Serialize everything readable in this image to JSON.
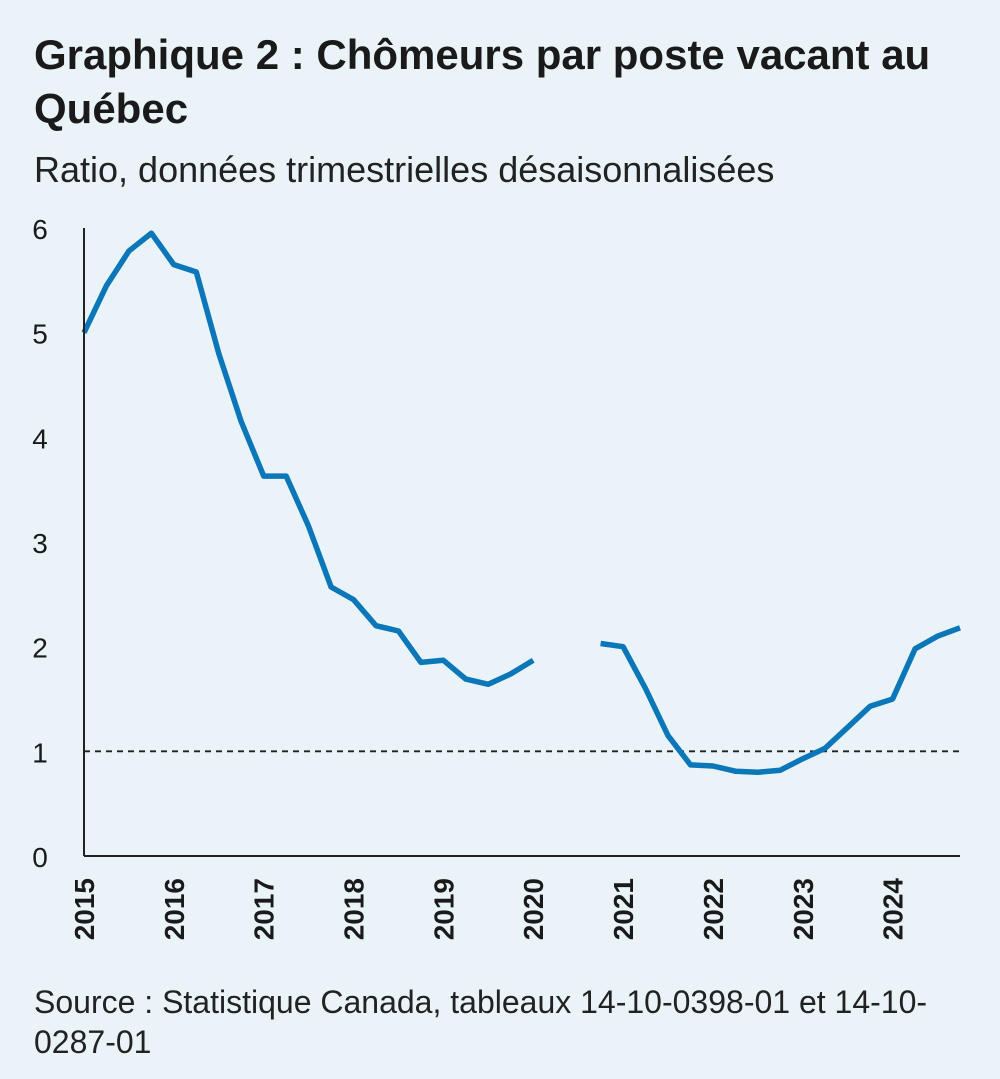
{
  "chart_data": {
    "type": "line",
    "title": "Graphique 2 : Chômeurs par poste vacant au Québec",
    "subtitle": "Ratio, données trimestrielles désaisonnalisées",
    "xlabel": "",
    "ylabel": "",
    "y_ticks": [
      "0",
      "1",
      "2",
      "3",
      "4",
      "5",
      "6"
    ],
    "x_ticks": [
      "2015",
      "2016",
      "2017",
      "2018",
      "2019",
      "2020",
      "2021",
      "2022",
      "2023",
      "2024"
    ],
    "xlim": [
      "2015-Q1",
      "2024-Q4"
    ],
    "ylim": [
      0,
      6
    ],
    "reference_line": {
      "value": 1,
      "style": "dashed"
    },
    "grid": false,
    "legend": "none",
    "series_color": "#0b76b8",
    "series": [
      {
        "values": [
          {
            "x": "2015-Q1",
            "y": 5.0
          },
          {
            "x": "2015-Q2",
            "y": 5.45
          },
          {
            "x": "2015-Q3",
            "y": 5.78
          },
          {
            "x": "2015-Q4",
            "y": 5.95
          },
          {
            "x": "2016-Q1",
            "y": 5.65
          },
          {
            "x": "2016-Q2",
            "y": 5.58
          },
          {
            "x": "2016-Q3",
            "y": 4.8
          },
          {
            "x": "2016-Q4",
            "y": 4.15
          },
          {
            "x": "2017-Q1",
            "y": 3.63
          },
          {
            "x": "2017-Q2",
            "y": 3.63
          },
          {
            "x": "2017-Q3",
            "y": 3.15
          },
          {
            "x": "2017-Q4",
            "y": 2.57
          },
          {
            "x": "2018-Q1",
            "y": 2.45
          },
          {
            "x": "2018-Q2",
            "y": 2.2
          },
          {
            "x": "2018-Q3",
            "y": 2.15
          },
          {
            "x": "2018-Q4",
            "y": 1.85
          },
          {
            "x": "2019-Q1",
            "y": 1.87
          },
          {
            "x": "2019-Q2",
            "y": 1.69
          },
          {
            "x": "2019-Q3",
            "y": 1.64
          },
          {
            "x": "2019-Q4",
            "y": 1.74
          },
          {
            "x": "2020-Q1",
            "y": 1.87
          },
          {
            "x": "2020-Q2",
            "y": null
          },
          {
            "x": "2020-Q3",
            "y": null
          },
          {
            "x": "2020-Q4",
            "y": 2.03
          },
          {
            "x": "2021-Q1",
            "y": 2.0
          },
          {
            "x": "2021-Q2",
            "y": 1.6
          },
          {
            "x": "2021-Q3",
            "y": 1.15
          },
          {
            "x": "2021-Q4",
            "y": 0.87
          },
          {
            "x": "2022-Q1",
            "y": 0.86
          },
          {
            "x": "2022-Q2",
            "y": 0.81
          },
          {
            "x": "2022-Q3",
            "y": 0.8
          },
          {
            "x": "2022-Q4",
            "y": 0.82
          },
          {
            "x": "2023-Q1",
            "y": 0.93
          },
          {
            "x": "2023-Q2",
            "y": 1.03
          },
          {
            "x": "2023-Q3",
            "y": 1.23
          },
          {
            "x": "2023-Q4",
            "y": 1.43
          },
          {
            "x": "2024-Q1",
            "y": 1.5
          },
          {
            "x": "2024-Q2",
            "y": 1.98
          },
          {
            "x": "2024-Q3",
            "y": 2.1
          },
          {
            "x": "2024-Q4",
            "y": 2.18
          }
        ]
      }
    ],
    "source": "Source : Statistique Canada, tableaux 14-10-0398-01 et 14-10-0287-01"
  }
}
